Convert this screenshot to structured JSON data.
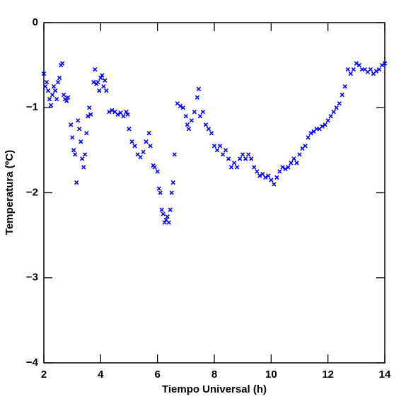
{
  "chart_data": {
    "type": "scatter",
    "marker": "x",
    "xlabel": "Tiempo Universal (h)",
    "ylabel": "Temperatura (ºC)",
    "xlim": [
      2,
      14
    ],
    "ylim": [
      -4,
      0
    ],
    "xticks": [
      2,
      4,
      6,
      8,
      10,
      12,
      14
    ],
    "yticks": [
      0,
      {
        "value": -1,
        "label": "−1"
      },
      {
        "value": -2,
        "label": "−2"
      },
      {
        "value": -3,
        "label": "−3"
      },
      {
        "value": -4,
        "label": "−4"
      }
    ],
    "color": "#0000ff",
    "x": [
      2.0,
      2.05,
      2.1,
      2.15,
      2.2,
      2.25,
      2.3,
      2.35,
      2.4,
      2.45,
      2.5,
      2.55,
      2.6,
      2.65,
      2.7,
      2.75,
      2.8,
      2.85,
      2.95,
      3.0,
      3.05,
      3.1,
      3.15,
      3.2,
      3.25,
      3.3,
      3.35,
      3.4,
      3.45,
      3.5,
      3.55,
      3.6,
      3.65,
      3.75,
      3.8,
      3.85,
      3.9,
      3.95,
      4.0,
      4.05,
      4.1,
      4.15,
      4.2,
      4.3,
      4.4,
      4.5,
      4.6,
      4.7,
      4.8,
      4.9,
      4.95,
      5.0,
      5.1,
      5.2,
      5.3,
      5.4,
      5.5,
      5.6,
      5.7,
      5.75,
      5.85,
      5.9,
      6.0,
      6.05,
      6.1,
      6.15,
      6.2,
      6.25,
      6.3,
      6.35,
      6.4,
      6.45,
      6.5,
      6.55,
      6.6,
      6.7,
      6.8,
      6.9,
      7.0,
      7.05,
      7.1,
      7.2,
      7.3,
      7.4,
      7.45,
      7.5,
      7.6,
      7.7,
      7.8,
      7.9,
      8.0,
      8.1,
      8.2,
      8.3,
      8.4,
      8.5,
      8.6,
      8.7,
      8.8,
      8.9,
      9.0,
      9.1,
      9.2,
      9.3,
      9.4,
      9.5,
      9.6,
      9.7,
      9.8,
      9.9,
      10.0,
      10.1,
      10.2,
      10.3,
      10.4,
      10.5,
      10.6,
      10.7,
      10.8,
      10.9,
      11.0,
      11.1,
      11.2,
      11.3,
      11.4,
      11.5,
      11.6,
      11.7,
      11.8,
      11.9,
      12.0,
      12.1,
      12.2,
      12.3,
      12.4,
      12.5,
      12.6,
      12.7,
      12.8,
      12.9,
      13.0,
      13.1,
      13.2,
      13.3,
      13.4,
      13.5,
      13.6,
      13.7,
      13.8,
      13.9,
      14.0
    ],
    "values": [
      -0.6,
      -0.75,
      -0.7,
      -0.8,
      -0.9,
      -0.97,
      -0.85,
      -0.75,
      -0.8,
      -0.9,
      -0.7,
      -0.65,
      -0.5,
      -0.48,
      -0.85,
      -0.9,
      -0.92,
      -0.88,
      -1.2,
      -1.35,
      -1.5,
      -1.55,
      -1.88,
      -1.15,
      -1.25,
      -1.4,
      -1.6,
      -1.7,
      -1.55,
      -1.3,
      -1.1,
      -1.0,
      -1.08,
      -0.7,
      -0.55,
      -0.72,
      -0.7,
      -0.8,
      -0.65,
      -0.62,
      -0.75,
      -0.68,
      -0.8,
      -1.05,
      -1.03,
      -1.05,
      -1.08,
      -1.06,
      -1.1,
      -1.05,
      -1.08,
      -1.25,
      -1.4,
      -1.45,
      -1.55,
      -1.58,
      -1.52,
      -1.4,
      -1.3,
      -1.45,
      -1.68,
      -1.7,
      -1.75,
      -1.95,
      -2.0,
      -2.2,
      -2.25,
      -2.35,
      -2.32,
      -2.28,
      -2.35,
      -2.2,
      -2.0,
      -1.88,
      -1.55,
      -0.95,
      -0.98,
      -1.0,
      -1.1,
      -1.2,
      -1.25,
      -1.15,
      -1.05,
      -0.88,
      -0.78,
      -1.1,
      -1.05,
      -1.2,
      -1.25,
      -1.3,
      -1.45,
      -1.5,
      -1.45,
      -1.55,
      -1.5,
      -1.6,
      -1.7,
      -1.65,
      -1.7,
      -1.6,
      -1.55,
      -1.6,
      -1.55,
      -1.6,
      -1.7,
      -1.75,
      -1.8,
      -1.78,
      -1.82,
      -1.8,
      -1.85,
      -1.9,
      -1.82,
      -1.75,
      -1.7,
      -1.72,
      -1.7,
      -1.65,
      -1.6,
      -1.65,
      -1.55,
      -1.48,
      -1.45,
      -1.35,
      -1.3,
      -1.28,
      -1.25,
      -1.25,
      -1.22,
      -1.2,
      -1.15,
      -1.1,
      -1.05,
      -1.0,
      -0.95,
      -0.85,
      -0.75,
      -0.55,
      -0.6,
      -0.55,
      -0.48,
      -0.5,
      -0.55,
      -0.55,
      -0.58,
      -0.55,
      -0.6,
      -0.57,
      -0.55,
      -0.5,
      -0.48
    ]
  }
}
